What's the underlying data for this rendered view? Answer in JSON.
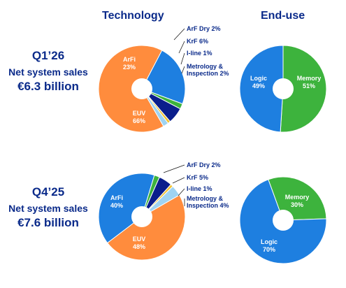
{
  "headers": {
    "technology": "Technology",
    "end_use": "End-use"
  },
  "periods": [
    {
      "quarter": "Q1’26",
      "label": "Net system sales",
      "amount": "€6.3 billion"
    },
    {
      "quarter": "Q4’25",
      "label": "Net system sales",
      "amount": "€7.6 billion"
    }
  ],
  "colors": {
    "EUV": "#FF8C3D",
    "ArFi": "#1E7FE0",
    "ArF Dry": "#3DB33D",
    "KrF": "#0B1E8C",
    "I-line": "#F2C230",
    "Metrology & Inspection": "#9FD3F2",
    "Logic": "#1E7FE0",
    "Memory": "#3DB33D",
    "label_inside": "#ffffff",
    "label_outside": "#0a2a8a"
  },
  "chart_data": [
    {
      "type": "pie",
      "title": "Technology",
      "period": "Q1’26",
      "series": [
        {
          "name": "EUV",
          "value": 66,
          "label": "EUV\n66%"
        },
        {
          "name": "ArFi",
          "value": 23,
          "label": "ArFi\n23%"
        },
        {
          "name": "ArF Dry",
          "value": 2,
          "label": "ArF Dry 2%"
        },
        {
          "name": "KrF",
          "value": 6,
          "label": "KrF 6%"
        },
        {
          "name": "I-line",
          "value": 1,
          "label": "I-line 1%"
        },
        {
          "name": "Metrology & Inspection",
          "value": 2,
          "label": "Metrology &\nInspection 2%"
        }
      ]
    },
    {
      "type": "pie",
      "title": "End-use",
      "period": "Q1’26",
      "series": [
        {
          "name": "Logic",
          "value": 49,
          "label": "Logic\n49%"
        },
        {
          "name": "Memory",
          "value": 51,
          "label": "Memory\n51%"
        }
      ]
    },
    {
      "type": "pie",
      "title": "Technology",
      "period": "Q4’25",
      "series": [
        {
          "name": "EUV",
          "value": 48,
          "label": "EUV\n48%"
        },
        {
          "name": "ArFi",
          "value": 40,
          "label": "ArFi\n40%"
        },
        {
          "name": "ArF Dry",
          "value": 2,
          "label": "ArF Dry 2%"
        },
        {
          "name": "KrF",
          "value": 5,
          "label": "KrF 5%"
        },
        {
          "name": "I-line",
          "value": 1,
          "label": "I-line 1%"
        },
        {
          "name": "Metrology & Inspection",
          "value": 4,
          "label": "Metrology &\nInspection 4%"
        }
      ]
    },
    {
      "type": "pie",
      "title": "End-use",
      "period": "Q4’25",
      "series": [
        {
          "name": "Logic",
          "value": 70,
          "label": "Logic\n70%"
        },
        {
          "name": "Memory",
          "value": 30,
          "label": "Memory\n30%"
        }
      ]
    }
  ]
}
